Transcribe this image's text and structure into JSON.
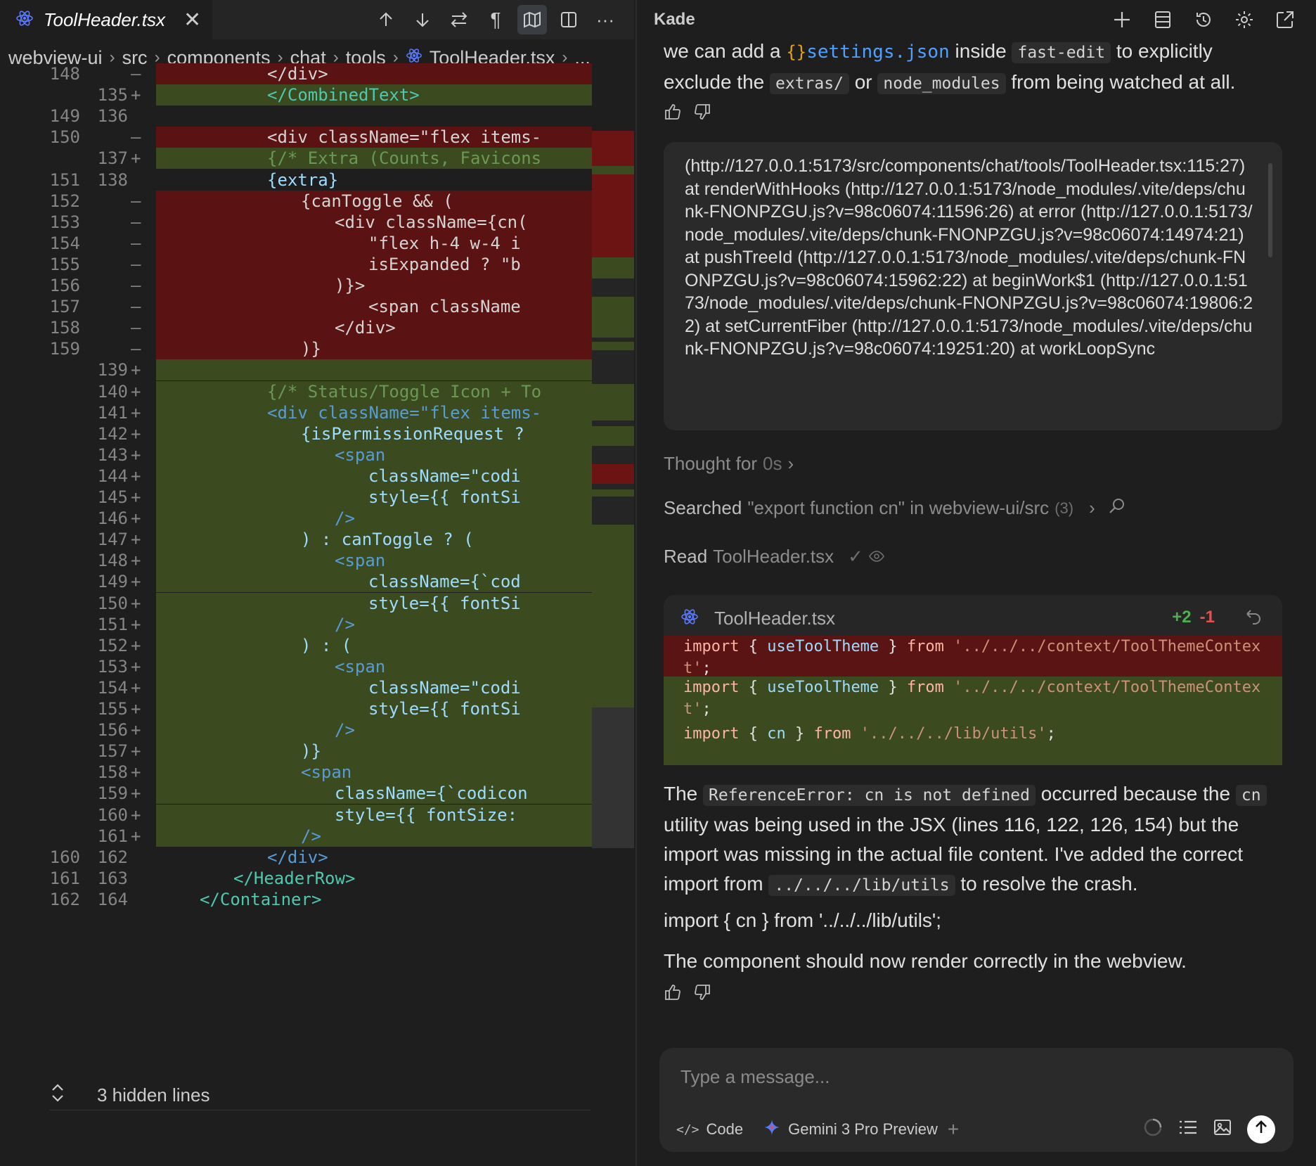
{
  "editor": {
    "tab": {
      "title": "ToolHeader.tsx"
    },
    "actions": [
      "previous-change",
      "next-change",
      "swap",
      "show-whitespace",
      "minimap",
      "split-editor",
      "more"
    ],
    "breadcrumb": [
      "webview-ui",
      "src",
      "components",
      "chat",
      "tools",
      "ToolHeader.tsx",
      "..."
    ],
    "lines": [
      {
        "old": "148",
        "new": "",
        "mark": "—",
        "kind": "del",
        "indent": 1,
        "text": "</div>"
      },
      {
        "old": "",
        "new": "135",
        "mark": "+",
        "kind": "add",
        "indent": 1,
        "text": "</CombinedText>"
      },
      {
        "old": "149",
        "new": "136",
        "mark": "",
        "kind": "ctx",
        "indent": 0,
        "text": ""
      },
      {
        "old": "150",
        "new": "",
        "mark": "—",
        "kind": "del",
        "indent": 1,
        "text": "<div className=\"flex items-"
      },
      {
        "old": "",
        "new": "137",
        "mark": "+",
        "kind": "add",
        "indent": 1,
        "text": "{/* Extra (Counts, Favicons"
      },
      {
        "old": "151",
        "new": "138",
        "mark": "",
        "kind": "ctx",
        "indent": 1,
        "text": "{extra}"
      },
      {
        "old": "152",
        "new": "",
        "mark": "—",
        "kind": "del",
        "indent": 2,
        "text": "{canToggle && ("
      },
      {
        "old": "153",
        "new": "",
        "mark": "—",
        "kind": "del",
        "indent": 3,
        "text": "<div className={cn("
      },
      {
        "old": "154",
        "new": "",
        "mark": "—",
        "kind": "del",
        "indent": 4,
        "text": "\"flex h-4 w-4 i"
      },
      {
        "old": "155",
        "new": "",
        "mark": "—",
        "kind": "del",
        "indent": 4,
        "text": "isExpanded ? \"b"
      },
      {
        "old": "156",
        "new": "",
        "mark": "—",
        "kind": "del",
        "indent": 3,
        "text": ")}>"
      },
      {
        "old": "157",
        "new": "",
        "mark": "—",
        "kind": "del",
        "indent": 4,
        "text": "<span className"
      },
      {
        "old": "158",
        "new": "",
        "mark": "—",
        "kind": "del",
        "indent": 3,
        "text": "</div>"
      },
      {
        "old": "159",
        "new": "",
        "mark": "—",
        "kind": "del",
        "indent": 2,
        "text": ")}"
      },
      {
        "old": "",
        "new": "139",
        "mark": "+",
        "kind": "add",
        "indent": 0,
        "text": ""
      },
      {
        "old": "",
        "new": "140",
        "mark": "+",
        "kind": "add",
        "indent": 1,
        "text": "{/* Status/Toggle Icon + To"
      },
      {
        "old": "",
        "new": "141",
        "mark": "+",
        "kind": "add",
        "indent": 1,
        "text": "<div className=\"flex items-"
      },
      {
        "old": "",
        "new": "142",
        "mark": "+",
        "kind": "add",
        "indent": 2,
        "text": "{isPermissionRequest ?"
      },
      {
        "old": "",
        "new": "143",
        "mark": "+",
        "kind": "add",
        "indent": 3,
        "text": "<span"
      },
      {
        "old": "",
        "new": "144",
        "mark": "+",
        "kind": "add",
        "indent": 4,
        "text": "className=\"codi"
      },
      {
        "old": "",
        "new": "145",
        "mark": "+",
        "kind": "add",
        "indent": 4,
        "text": "style={{ fontSi"
      },
      {
        "old": "",
        "new": "146",
        "mark": "+",
        "kind": "add",
        "indent": 3,
        "text": "/>"
      },
      {
        "old": "",
        "new": "147",
        "mark": "+",
        "kind": "add",
        "indent": 2,
        "text": ") : canToggle ? ("
      },
      {
        "old": "",
        "new": "148",
        "mark": "+",
        "kind": "add",
        "indent": 3,
        "text": "<span"
      },
      {
        "old": "",
        "new": "149",
        "mark": "+",
        "kind": "add",
        "indent": 4,
        "text": "className={`cod"
      },
      {
        "old": "",
        "new": "150",
        "mark": "+",
        "kind": "add",
        "indent": 4,
        "text": "style={{ fontSi"
      },
      {
        "old": "",
        "new": "151",
        "mark": "+",
        "kind": "add",
        "indent": 3,
        "text": "/>"
      },
      {
        "old": "",
        "new": "152",
        "mark": "+",
        "kind": "add",
        "indent": 2,
        "text": ") : ("
      },
      {
        "old": "",
        "new": "153",
        "mark": "+",
        "kind": "add",
        "indent": 3,
        "text": "<span"
      },
      {
        "old": "",
        "new": "154",
        "mark": "+",
        "kind": "add",
        "indent": 4,
        "text": "className=\"codi"
      },
      {
        "old": "",
        "new": "155",
        "mark": "+",
        "kind": "add",
        "indent": 4,
        "text": "style={{ fontSi"
      },
      {
        "old": "",
        "new": "156",
        "mark": "+",
        "kind": "add",
        "indent": 3,
        "text": "/>"
      },
      {
        "old": "",
        "new": "157",
        "mark": "+",
        "kind": "add",
        "indent": 2,
        "text": ")}"
      },
      {
        "old": "",
        "new": "158",
        "mark": "+",
        "kind": "add",
        "indent": 2,
        "text": "<span"
      },
      {
        "old": "",
        "new": "159",
        "mark": "+",
        "kind": "add",
        "indent": 3,
        "text": "className={`codicon"
      },
      {
        "old": "",
        "new": "160",
        "mark": "+",
        "kind": "add",
        "indent": 3,
        "text": "style={{ fontSize:"
      },
      {
        "old": "",
        "new": "161",
        "mark": "+",
        "kind": "add",
        "indent": 2,
        "text": "/>"
      },
      {
        "old": "160",
        "new": "162",
        "mark": "",
        "kind": "ctx",
        "indent": 1,
        "text": "</div>"
      },
      {
        "old": "161",
        "new": "163",
        "mark": "",
        "kind": "ctx",
        "indent": 0,
        "text": "</HeaderRow>"
      },
      {
        "old": "162",
        "new": "164",
        "mark": "",
        "kind": "ctx",
        "indent": -1,
        "text": "</Container>"
      }
    ],
    "hidden_lines": "3 hidden lines"
  },
  "chat": {
    "title": "Kade",
    "header_actions": [
      "new-chat",
      "history-list",
      "history",
      "settings",
      "open-external"
    ],
    "msg1": {
      "a": "we can add a ",
      "brace": "{}",
      "file": "settings.json",
      "b": " inside ",
      "code1": "fast-edit",
      "c": " to explicitly exclude the ",
      "code2": "extras/",
      "d": " or ",
      "code3": "node_modules",
      "e": " from being watched at all."
    },
    "stack": "(http://127.0.0.1:5173/src/components/chat/tools/ToolHeader.tsx:115:27) at renderWithHooks (http://127.0.0.1:5173/node_modules/.vite/deps/chunk-FNONPZGU.js?v=98c06074:11596:26) at error (http://127.0.0.1:5173/node_modules/.vite/deps/chunk-FNONPZGU.js?v=98c06074:14974:21) at pushTreeId (http://127.0.0.1:5173/node_modules/.vite/deps/chunk-FNONPZGU.js?v=98c06074:15962:22) at beginWork$1 (http://127.0.0.1:5173/node_modules/.vite/deps/chunk-FNONPZGU.js?v=98c06074:19806:22) at setCurrentFiber (http://127.0.0.1:5173/node_modules/.vite/deps/chunk-FNONPZGU.js?v=98c06074:19251:20) at workLoopSync",
    "thought": {
      "label": "Thought for",
      "time": "0s"
    },
    "searched": {
      "label": "Searched",
      "query": "\"export function cn\" in webview-ui/src",
      "count": "(3)"
    },
    "read": {
      "label": "Read",
      "file": "ToolHeader.tsx"
    },
    "diff": {
      "file": "ToolHeader.tsx",
      "added": "+2",
      "removed": "-1",
      "lines": [
        {
          "kind": "del",
          "text": "import { useToolTheme } from '../../../context/ToolThemeContex\nt';"
        },
        {
          "kind": "add",
          "text": "import { useToolTheme } from '../../../context/ToolThemeContex\nt';"
        },
        {
          "kind": "add",
          "text": "import { cn } from '../../../lib/utils';"
        }
      ]
    },
    "msg2": {
      "a": "The ",
      "code1": "ReferenceError: cn is not defined",
      "b": " occurred because the ",
      "code2": "cn",
      "c": " utility was being used in the JSX (lines 116, 122, 126, 154) but the import was missing in the actual file content. I've added the correct import from ",
      "code3": "../../../lib/utils",
      "d": " to resolve the crash."
    },
    "msg3": "import { cn } from '../../../lib/utils';",
    "msg4": "The component should now render correctly in the webview.",
    "input": {
      "placeholder": "Type a message...",
      "mode": "Code",
      "model": "Gemini 3 Pro Preview"
    },
    "colors": {
      "added": "#4caf50",
      "removed": "#e05252",
      "link": "#4fa0ff"
    }
  }
}
